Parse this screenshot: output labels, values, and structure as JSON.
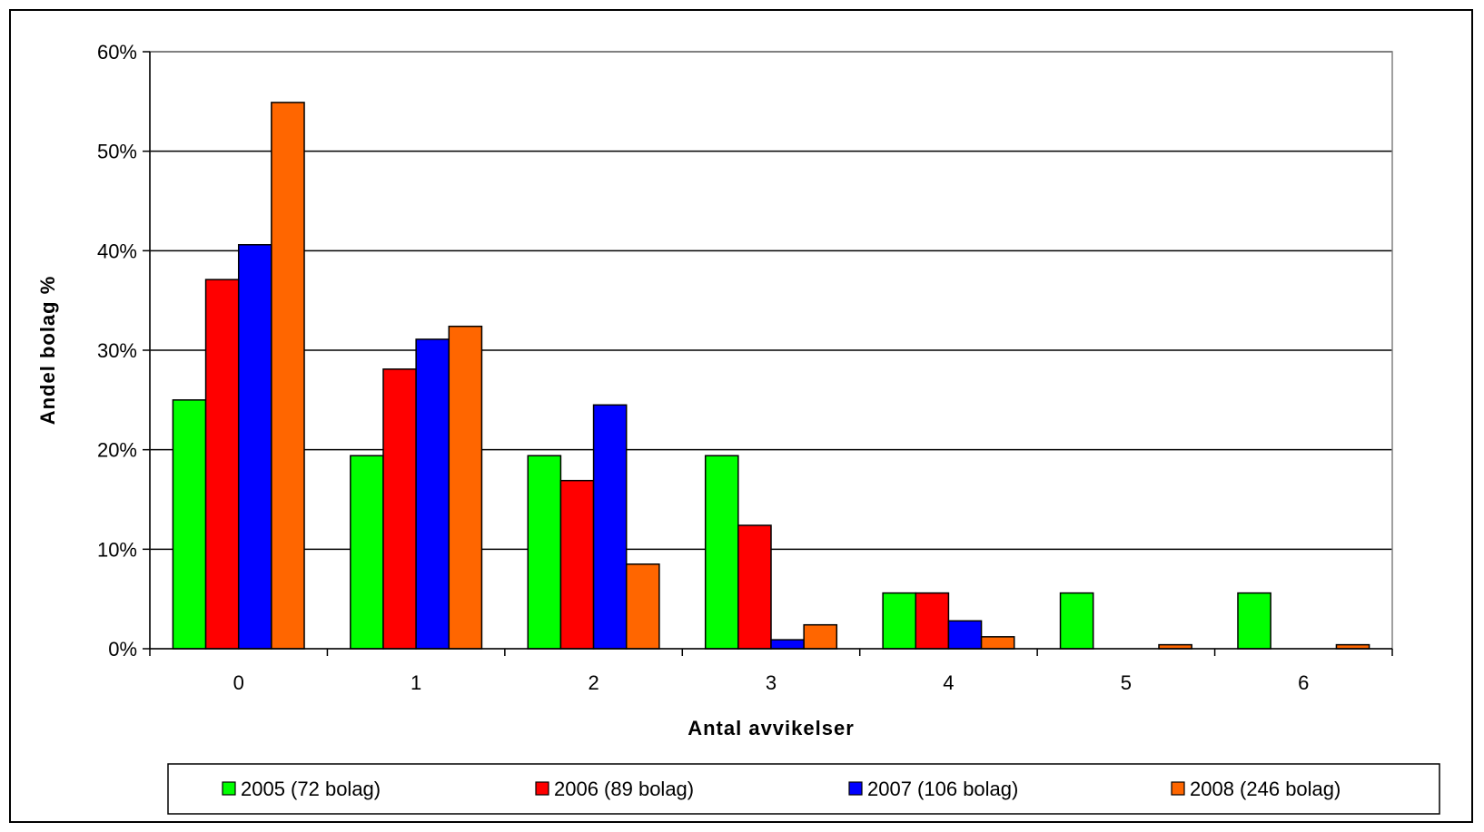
{
  "chart_data": {
    "type": "bar",
    "title": "",
    "xlabel": "Antal avvikelser",
    "ylabel": "Andel bolag %",
    "ylim": [
      0,
      60
    ],
    "yticks": [
      "0%",
      "10%",
      "20%",
      "30%",
      "40%",
      "50%",
      "60%"
    ],
    "categories": [
      "0",
      "1",
      "2",
      "3",
      "4",
      "5",
      "6"
    ],
    "grid": true,
    "legend_position": "bottom",
    "series": [
      {
        "name": "2005 (72 bolag)",
        "color": "#00ff00",
        "values": [
          25.0,
          19.4,
          19.4,
          19.4,
          5.6,
          5.6,
          5.6
        ]
      },
      {
        "name": "2006 (89 bolag)",
        "color": "#ff0000",
        "values": [
          37.1,
          28.1,
          16.9,
          12.4,
          5.6,
          0,
          0
        ]
      },
      {
        "name": "2007 (106 bolag)",
        "color": "#0000ff",
        "values": [
          40.6,
          31.1,
          24.5,
          0.9,
          2.8,
          0,
          0
        ]
      },
      {
        "name": "2008 (246 bolag)",
        "color": "#ff6600",
        "values": [
          54.9,
          32.4,
          8.5,
          2.4,
          1.2,
          0.4,
          0.4
        ]
      }
    ]
  }
}
